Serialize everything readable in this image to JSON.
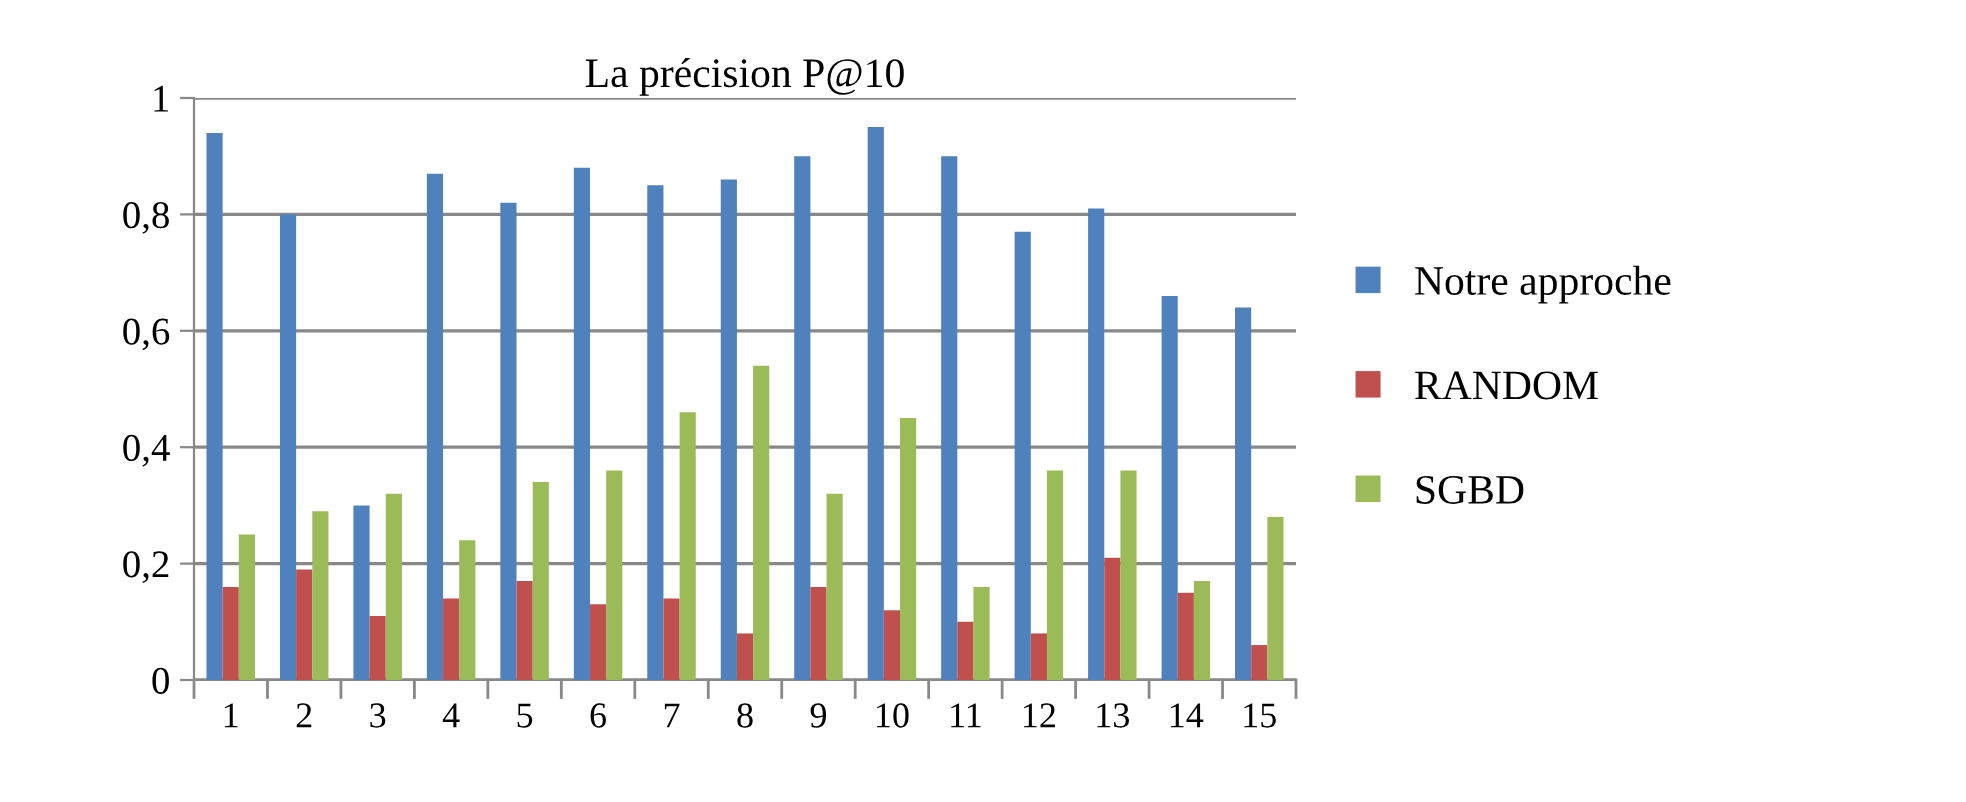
{
  "chart_data": {
    "type": "bar",
    "title": "La précision P@10",
    "categories": [
      "1",
      "2",
      "3",
      "4",
      "5",
      "6",
      "7",
      "8",
      "9",
      "10",
      "11",
      "12",
      "13",
      "14",
      "15"
    ],
    "series": [
      {
        "name": "Notre approche",
        "color": "#4f81bd",
        "values": [
          0.94,
          0.8,
          0.3,
          0.87,
          0.82,
          0.88,
          0.85,
          0.86,
          0.9,
          0.95,
          0.9,
          0.77,
          0.81,
          0.66,
          0.64
        ]
      },
      {
        "name": "RANDOM",
        "color": "#c0504d",
        "values": [
          0.16,
          0.19,
          0.11,
          0.14,
          0.17,
          0.13,
          0.14,
          0.08,
          0.16,
          0.12,
          0.1,
          0.08,
          0.21,
          0.15,
          0.06
        ]
      },
      {
        "name": "SGBD",
        "color": "#9bbb59",
        "values": [
          0.25,
          0.29,
          0.32,
          0.24,
          0.34,
          0.36,
          0.46,
          0.54,
          0.32,
          0.45,
          0.16,
          0.36,
          0.36,
          0.17,
          0.28
        ]
      }
    ],
    "ylim": [
      0,
      1
    ],
    "yticks": [
      0,
      {
        "value": 0.2,
        "label": "0,2"
      },
      {
        "value": 0.4,
        "label": "0,4"
      },
      {
        "value": 0.6,
        "label": "0,6"
      },
      {
        "value": 0.8,
        "label": "0,8"
      },
      1
    ],
    "grid": "y",
    "legend": "right"
  }
}
